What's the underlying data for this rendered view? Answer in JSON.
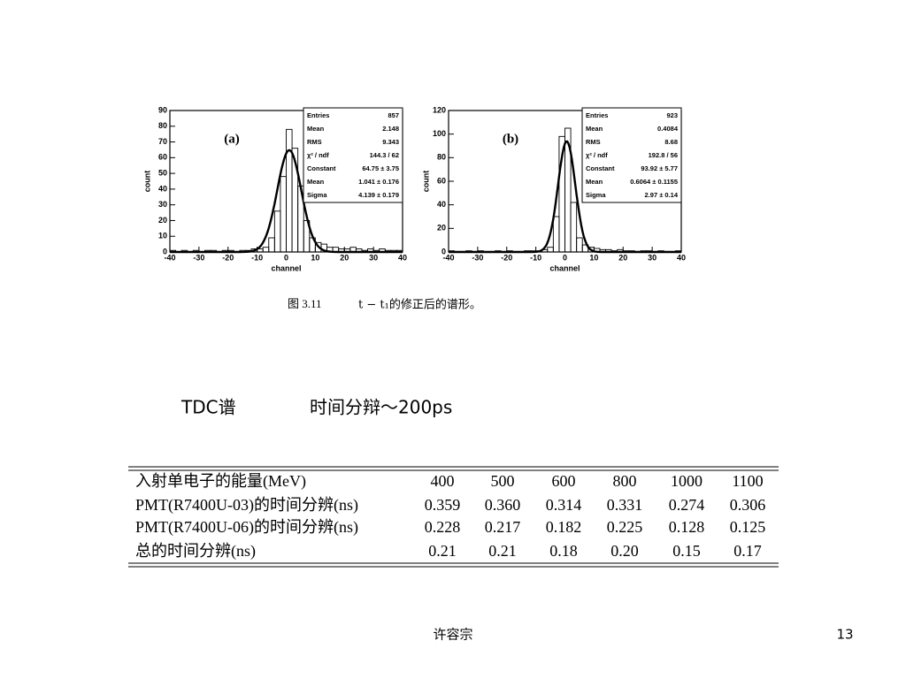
{
  "chart_data": [
    {
      "type": "histogram",
      "label": "(a)",
      "xlabel": "channel",
      "ylabel": "count",
      "bins": [
        -40,
        -38,
        -36,
        -34,
        -32,
        -30,
        -28,
        -26,
        -24,
        -22,
        -20,
        -18,
        -16,
        -14,
        -12,
        -10,
        -8,
        -6,
        -4,
        -2,
        0,
        2,
        4,
        6,
        8,
        10,
        12,
        14,
        16,
        18,
        20,
        22,
        24,
        26,
        28,
        30,
        32,
        34,
        36,
        38,
        40
      ],
      "values": [
        1,
        0,
        1,
        0,
        1,
        0,
        1,
        1,
        0,
        1,
        1,
        0,
        1,
        1,
        2,
        2,
        3,
        9,
        26,
        48,
        78,
        66,
        42,
        20,
        9,
        6,
        5,
        3,
        3,
        2,
        2,
        3,
        2,
        1,
        2,
        1,
        2,
        1,
        1,
        1
      ],
      "xlim": [
        -40,
        40
      ],
      "ylim": [
        0,
        90
      ],
      "xticks": [
        -40,
        -30,
        -20,
        -10,
        0,
        10,
        20,
        30,
        40
      ],
      "yticks": [
        0,
        10,
        20,
        30,
        40,
        50,
        60,
        70,
        80,
        90
      ],
      "stats": [
        [
          "Entries",
          "857"
        ],
        [
          "Mean",
          "2.148"
        ],
        [
          "RMS",
          "9.343"
        ],
        [
          "χ² / ndf",
          "144.3 / 62"
        ],
        [
          "Constant",
          "64.75 ± 3.75"
        ],
        [
          "Mean",
          "1.041 ± 0.176"
        ],
        [
          "Sigma",
          "4.139 ± 0.179"
        ]
      ],
      "fit": {
        "constant": 64.75,
        "mean": 1.041,
        "sigma": 4.139
      }
    },
    {
      "type": "histogram",
      "label": "(b)",
      "xlabel": "channel",
      "ylabel": "count",
      "bins": [
        -40,
        -38,
        -36,
        -34,
        -32,
        -30,
        -28,
        -26,
        -24,
        -22,
        -20,
        -18,
        -16,
        -14,
        -12,
        -10,
        -8,
        -6,
        -4,
        -2,
        0,
        2,
        4,
        6,
        8,
        10,
        12,
        14,
        16,
        18,
        20,
        22,
        24,
        26,
        28,
        30,
        32,
        34,
        36,
        38,
        40
      ],
      "values": [
        1,
        0,
        0,
        1,
        0,
        1,
        0,
        0,
        1,
        0,
        1,
        0,
        0,
        1,
        1,
        1,
        2,
        4,
        30,
        98,
        105,
        42,
        12,
        6,
        4,
        3,
        2,
        2,
        1,
        2,
        1,
        1,
        0,
        1,
        1,
        0,
        1,
        0,
        0,
        1
      ],
      "xlim": [
        -40,
        40
      ],
      "ylim": [
        0,
        120
      ],
      "xticks": [
        -40,
        -30,
        -20,
        -10,
        0,
        10,
        20,
        30,
        40
      ],
      "yticks": [
        0,
        20,
        40,
        60,
        80,
        100,
        120
      ],
      "stats": [
        [
          "Entries",
          "923"
        ],
        [
          "Mean",
          "0.4084"
        ],
        [
          "RMS",
          "8.68"
        ],
        [
          "χ² / ndf",
          "192.8 / 56"
        ],
        [
          "Constant",
          "93.92 ± 5.77"
        ],
        [
          "Mean",
          "0.6064 ± 0.1155"
        ],
        [
          "Sigma",
          "2.97 ± 0.14"
        ]
      ],
      "fit": {
        "constant": 93.92,
        "mean": 0.6064,
        "sigma": 2.97
      }
    }
  ],
  "caption": {
    "label": "图 3.11",
    "text": "t − t₁的修正后的谱形。"
  },
  "note": {
    "left": "TDC谱",
    "right": "时间分辩～200ps"
  },
  "table": {
    "rows": [
      [
        "入射单电子的能量(MeV)",
        "400",
        "500",
        "600",
        "800",
        "1000",
        "1100"
      ],
      [
        "PMT(R7400U-03)的时间分辨(ns)",
        "0.359",
        "0.360",
        "0.314",
        "0.331",
        "0.274",
        "0.306"
      ],
      [
        "PMT(R7400U-06)的时间分辨(ns)",
        "0.228",
        "0.217",
        "0.182",
        "0.225",
        "0.128",
        "0.125"
      ],
      [
        "总的时间分辨(ns)",
        "0.21",
        "0.21",
        "0.18",
        "0.20",
        "0.15",
        "0.17"
      ]
    ]
  },
  "footer": {
    "author": "许容宗",
    "page": "13"
  }
}
